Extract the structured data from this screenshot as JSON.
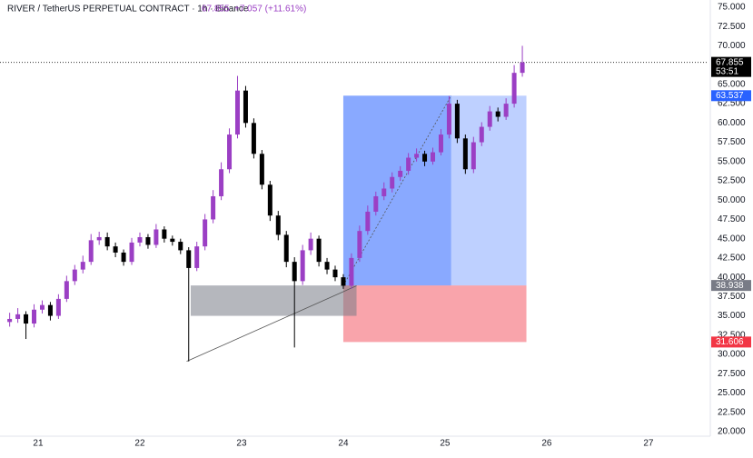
{
  "chart_data": {
    "type": "candlestick",
    "title": "RIVER / TetherUS PERPETUAL CONTRACT · 1h · Binance",
    "price_text": "67.855",
    "change_text": "+7.057 (+11.61%)",
    "up_color": "#9b3fc4",
    "down_color": "#000000",
    "x": [
      20.72,
      20.8,
      20.88,
      20.96,
      21.04,
      21.12,
      21.2,
      21.28,
      21.36,
      21.44,
      21.52,
      21.6,
      21.68,
      21.76,
      21.84,
      21.92,
      22,
      22.08,
      22.16,
      22.24,
      22.32,
      22.4,
      22.48,
      22.56,
      22.64,
      22.72,
      22.8,
      22.88,
      22.96,
      23.04,
      23.12,
      23.2,
      23.28,
      23.36,
      23.44,
      23.52,
      23.6,
      23.68,
      23.76,
      23.84,
      23.92,
      24,
      24.08,
      24.16,
      24.24,
      24.32,
      24.4,
      24.48,
      24.56,
      24.64,
      24.72,
      24.8,
      24.88,
      24.96,
      25.04,
      25.12,
      25.2,
      25.28,
      25.36,
      25.44,
      25.52,
      25.6,
      25.68,
      25.76
    ],
    "open": [
      34.2,
      34.6,
      35.2,
      34.0,
      35.8,
      36.4,
      35.0,
      37.2,
      39.5,
      41.0,
      42.0,
      44.8,
      45.2,
      44.0,
      43.2,
      42.0,
      44.5,
      45.2,
      44.2,
      46.2,
      45.0,
      44.6,
      43.5,
      41.2,
      44.0,
      47.5,
      50.5,
      54.0,
      58.5,
      64.2,
      60.0,
      56.0,
      52.0,
      48.0,
      45.5,
      42.0,
      39.5,
      43.5,
      45.0,
      42.0,
      41.0,
      40.0,
      38.9,
      42.5,
      46.0,
      48.5,
      50.5,
      51.5,
      53.0,
      53.8,
      55.5,
      56.0,
      55.0,
      56.2,
      58.5,
      62.5,
      58.0,
      54.0,
      57.5,
      59.5,
      61.5,
      60.8,
      62.5,
      66.5
    ],
    "high": [
      35.4,
      36.0,
      35.6,
      36.5,
      37.0,
      36.8,
      37.8,
      40.2,
      41.6,
      42.8,
      45.6,
      45.9,
      45.8,
      44.5,
      43.6,
      45.1,
      45.8,
      45.6,
      46.9,
      46.6,
      45.4,
      45.0,
      43.9,
      44.6,
      48.2,
      51.3,
      54.9,
      59.3,
      66.1,
      64.8,
      60.6,
      56.5,
      52.5,
      48.6,
      46.0,
      42.6,
      44.2,
      45.8,
      45.4,
      42.5,
      41.5,
      40.4,
      43.1,
      46.7,
      49.3,
      51.1,
      52.3,
      53.6,
      54.4,
      56.1,
      56.7,
      56.4,
      56.8,
      59.2,
      63.5,
      63.0,
      58.5,
      58.2,
      60.1,
      62.2,
      62.0,
      63.2,
      67.5,
      70.0
    ],
    "low": [
      33.6,
      34.1,
      32.0,
      33.5,
      35.3,
      34.4,
      34.6,
      36.8,
      39.0,
      40.5,
      41.6,
      44.2,
      43.5,
      42.6,
      41.5,
      41.6,
      44.0,
      43.7,
      43.8,
      44.5,
      44.1,
      43.0,
      29.1,
      40.8,
      43.5,
      47.0,
      50.0,
      53.5,
      58.0,
      59.4,
      55.4,
      51.4,
      47.3,
      44.8,
      41.3,
      30.9,
      39.0,
      42.9,
      41.4,
      40.4,
      39.5,
      38.5,
      38.5,
      42.0,
      45.5,
      48.0,
      50.0,
      51.0,
      52.5,
      53.3,
      55.0,
      54.4,
      54.6,
      55.8,
      58.0,
      57.4,
      53.4,
      53.5,
      57.0,
      59.0,
      60.2,
      60.4,
      62.0,
      66.0
    ],
    "close": [
      34.6,
      35.2,
      34.0,
      35.8,
      36.4,
      35.0,
      37.2,
      39.5,
      41.0,
      42.0,
      44.8,
      45.2,
      44.0,
      43.2,
      42.0,
      44.5,
      45.2,
      44.2,
      46.2,
      45.0,
      44.6,
      43.5,
      41.2,
      44.0,
      47.5,
      50.5,
      54.0,
      58.5,
      64.2,
      60.0,
      56.0,
      52.0,
      48.0,
      45.5,
      42.0,
      39.5,
      43.5,
      45.0,
      42.0,
      41.0,
      40.0,
      38.9,
      42.5,
      46.0,
      48.5,
      50.5,
      51.5,
      53.0,
      53.8,
      55.5,
      56.0,
      55.0,
      56.2,
      58.5,
      62.5,
      58.0,
      54.0,
      57.5,
      59.5,
      61.5,
      60.8,
      62.5,
      66.5,
      67.855
    ],
    "xlim": [
      20.625,
      27.59
    ],
    "xticks": [
      21,
      22,
      23,
      24,
      25,
      26,
      27
    ],
    "ylim": [
      19.4,
      75.94
    ],
    "yticks": [
      {
        "value": 20,
        "label": "20.000"
      },
      {
        "value": 22.5,
        "label": "22.500"
      },
      {
        "value": 25,
        "label": "25.000"
      },
      {
        "value": 27.5,
        "label": "27.500"
      },
      {
        "value": 30,
        "label": "30.000"
      },
      {
        "value": 32.5,
        "label": "32.500"
      },
      {
        "value": 35,
        "label": "35.000"
      },
      {
        "value": 37.5,
        "label": "37.500"
      },
      {
        "value": 40,
        "label": "40.000"
      },
      {
        "value": 42.5,
        "label": "42.500"
      },
      {
        "value": 45,
        "label": "45.000"
      },
      {
        "value": 47.5,
        "label": "47.500"
      },
      {
        "value": 50,
        "label": "50.000"
      },
      {
        "value": 52.5,
        "label": "52.500"
      },
      {
        "value": 55,
        "label": "55.000"
      },
      {
        "value": 57.5,
        "label": "57.500"
      },
      {
        "value": 60,
        "label": "60.000"
      },
      {
        "value": 62.5,
        "label": "62.500"
      },
      {
        "value": 65,
        "label": "65.000"
      },
      {
        "value": 67.5,
        "label": "67.500"
      },
      {
        "value": 70,
        "label": "70.000"
      },
      {
        "value": 72.5,
        "label": "72.500"
      },
      {
        "value": 75,
        "label": "75.000"
      }
    ],
    "last_price": {
      "value": 67.855,
      "label": "67.855",
      "countdown": "53:51",
      "color": "#000000"
    },
    "price_labels": [
      {
        "value": 63.537,
        "label": "63.537",
        "color": "#2962ff"
      },
      {
        "value": 38.938,
        "label": "38.938",
        "color": "#787b86"
      },
      {
        "value": 31.606,
        "label": "31.606",
        "color": "#f23645"
      }
    ],
    "position": {
      "entry": 38.938,
      "target": 63.537,
      "stop": 31.606,
      "x_start": 24.0,
      "x_filled": 25.06,
      "x_end": 25.8
    },
    "zone": {
      "low": 35.0,
      "high": 38.938,
      "x_start": 22.5,
      "x_end": 24.13
    },
    "trend_line": {
      "x": [
        22.46,
        24.13
      ],
      "y": [
        29.1,
        38.9
      ]
    }
  }
}
